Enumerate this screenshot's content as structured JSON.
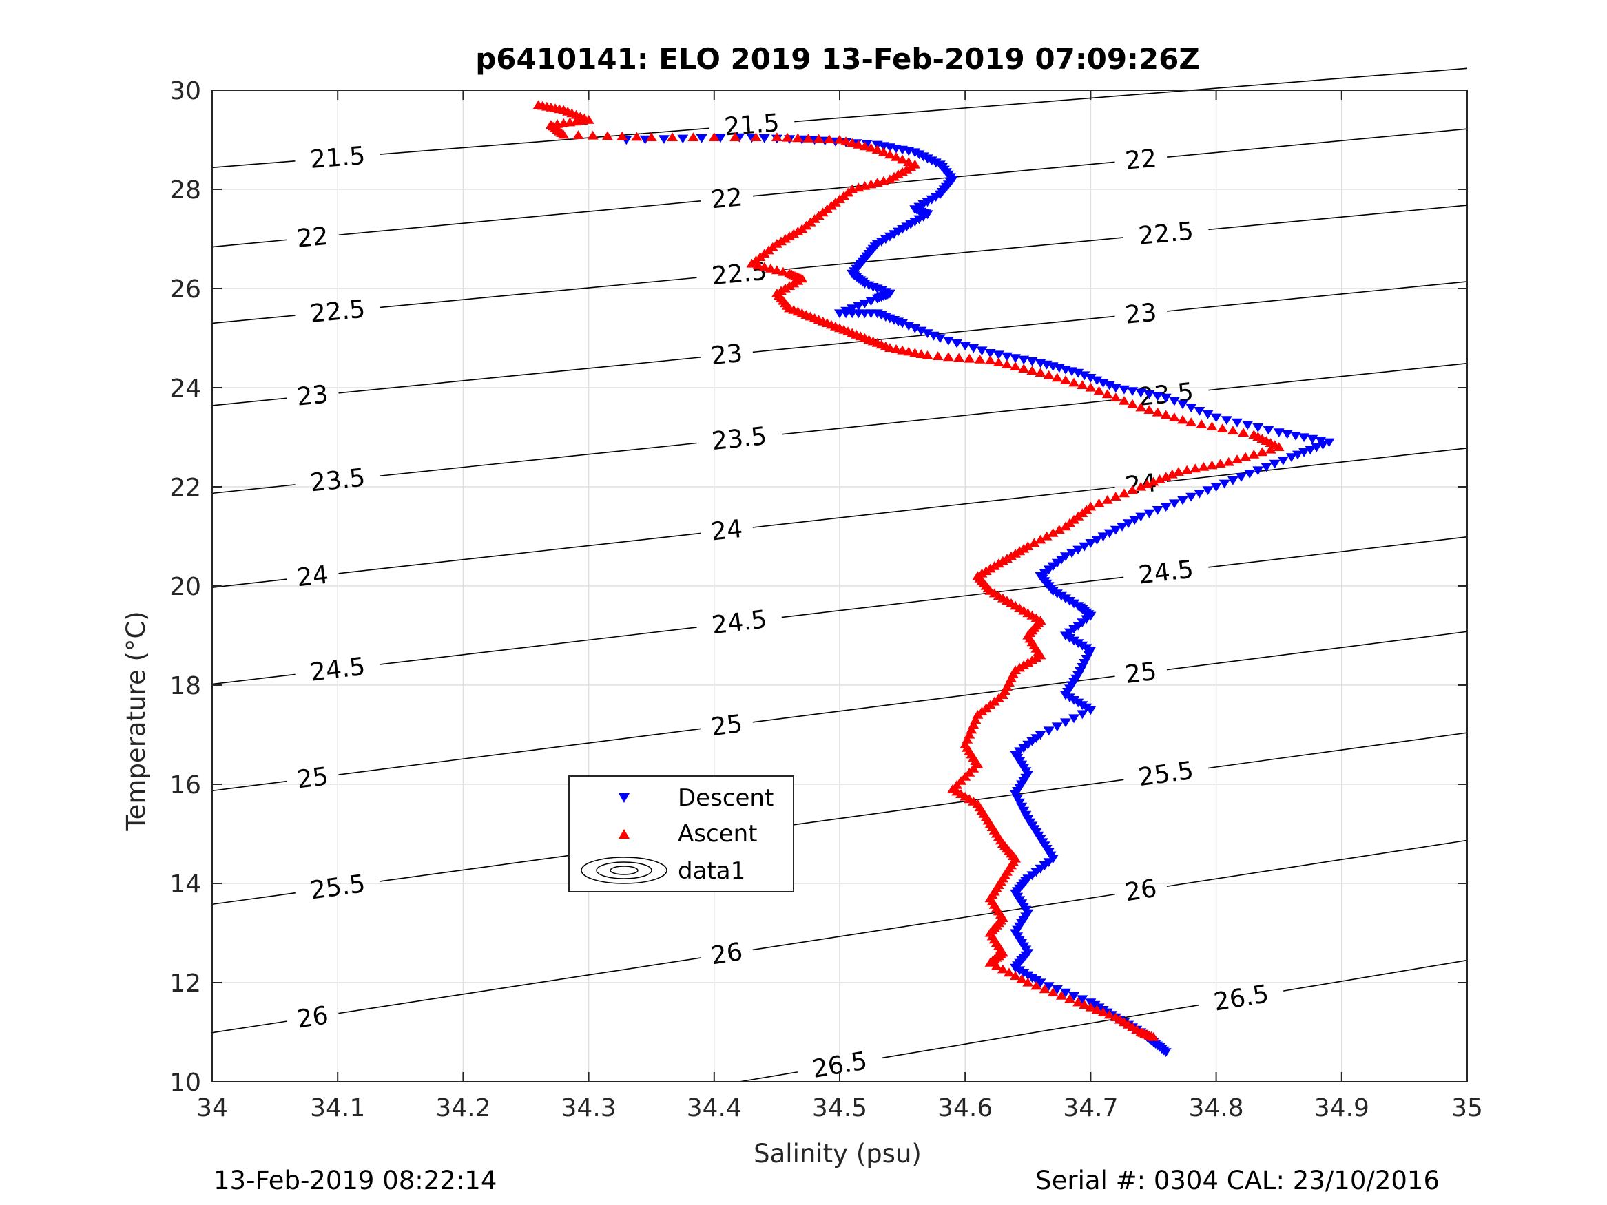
{
  "chart_data": {
    "type": "scatter",
    "title": "p6410141: ELO 2019 13-Feb-2019 07:09:26Z",
    "xlabel": "Salinity (psu)",
    "ylabel": "Temperature (°C)",
    "xlim": [
      34,
      35
    ],
    "ylim": [
      10,
      30
    ],
    "x_ticks": [
      "34",
      "34.1",
      "34.2",
      "34.3",
      "34.4",
      "34.5",
      "34.6",
      "34.7",
      "34.8",
      "34.9",
      "35"
    ],
    "y_ticks": [
      "10",
      "12",
      "14",
      "16",
      "18",
      "20",
      "22",
      "24",
      "26",
      "28",
      "30"
    ],
    "grid": true,
    "legend_placement": "center-left",
    "legend": [
      "Descent",
      "Ascent",
      "data1"
    ],
    "series": [
      {
        "name": "Descent",
        "marker": "triangle-down",
        "color": "#0000ff",
        "points": [
          [
            34.33,
            29.0
          ],
          [
            34.42,
            29.05
          ],
          [
            34.48,
            29.0
          ],
          [
            34.53,
            28.9
          ],
          [
            34.56,
            28.75
          ],
          [
            34.58,
            28.5
          ],
          [
            34.59,
            28.2
          ],
          [
            34.58,
            27.9
          ],
          [
            34.56,
            27.6
          ],
          [
            34.57,
            27.5
          ],
          [
            34.55,
            27.2
          ],
          [
            34.53,
            26.9
          ],
          [
            34.52,
            26.6
          ],
          [
            34.51,
            26.3
          ],
          [
            34.52,
            26.1
          ],
          [
            34.54,
            25.9
          ],
          [
            34.53,
            25.8
          ],
          [
            34.5,
            25.5
          ],
          [
            34.53,
            25.5
          ],
          [
            34.55,
            25.3
          ],
          [
            34.58,
            25.0
          ],
          [
            34.62,
            24.7
          ],
          [
            34.66,
            24.5
          ],
          [
            34.69,
            24.3
          ],
          [
            34.72,
            24.0
          ],
          [
            34.76,
            23.8
          ],
          [
            34.8,
            23.4
          ],
          [
            34.85,
            23.1
          ],
          [
            34.89,
            22.9
          ],
          [
            34.86,
            22.6
          ],
          [
            34.82,
            22.2
          ],
          [
            34.78,
            21.8
          ],
          [
            34.74,
            21.4
          ],
          [
            34.71,
            21.0
          ],
          [
            34.68,
            20.6
          ],
          [
            34.66,
            20.2
          ],
          [
            34.67,
            19.9
          ],
          [
            34.69,
            19.6
          ],
          [
            34.7,
            19.4
          ],
          [
            34.68,
            19.0
          ],
          [
            34.7,
            18.7
          ],
          [
            34.69,
            18.2
          ],
          [
            34.68,
            17.8
          ],
          [
            34.7,
            17.5
          ],
          [
            34.66,
            17.0
          ],
          [
            34.64,
            16.6
          ],
          [
            34.65,
            16.2
          ],
          [
            34.64,
            15.8
          ],
          [
            34.65,
            15.3
          ],
          [
            34.66,
            14.9
          ],
          [
            34.67,
            14.5
          ],
          [
            34.65,
            14.1
          ],
          [
            34.64,
            13.8
          ],
          [
            34.65,
            13.4
          ],
          [
            34.64,
            13.0
          ],
          [
            34.65,
            12.6
          ],
          [
            34.64,
            12.3
          ],
          [
            34.66,
            12.0
          ],
          [
            34.7,
            11.6
          ],
          [
            34.72,
            11.3
          ],
          [
            34.74,
            11.0
          ],
          [
            34.75,
            10.8
          ],
          [
            34.76,
            10.6
          ]
        ]
      },
      {
        "name": "Ascent",
        "marker": "triangle-up",
        "color": "#ff0000",
        "points": [
          [
            34.26,
            29.7
          ],
          [
            34.28,
            29.6
          ],
          [
            34.3,
            29.4
          ],
          [
            34.27,
            29.3
          ],
          [
            34.28,
            29.1
          ],
          [
            34.35,
            29.05
          ],
          [
            34.45,
            29.05
          ],
          [
            34.5,
            29.0
          ],
          [
            34.53,
            28.8
          ],
          [
            34.56,
            28.5
          ],
          [
            34.54,
            28.2
          ],
          [
            34.51,
            28.0
          ],
          [
            34.49,
            27.6
          ],
          [
            34.47,
            27.2
          ],
          [
            34.45,
            26.9
          ],
          [
            34.43,
            26.5
          ],
          [
            34.46,
            26.3
          ],
          [
            34.47,
            26.2
          ],
          [
            34.45,
            25.9
          ],
          [
            34.46,
            25.6
          ],
          [
            34.48,
            25.4
          ],
          [
            34.5,
            25.2
          ],
          [
            34.52,
            25.0
          ],
          [
            34.54,
            24.8
          ],
          [
            34.57,
            24.65
          ],
          [
            34.62,
            24.55
          ],
          [
            34.66,
            24.3
          ],
          [
            34.7,
            24.0
          ],
          [
            34.74,
            23.6
          ],
          [
            34.78,
            23.3
          ],
          [
            34.83,
            23.05
          ],
          [
            34.85,
            22.8
          ],
          [
            34.81,
            22.5
          ],
          [
            34.77,
            22.3
          ],
          [
            34.74,
            22.0
          ],
          [
            34.7,
            21.6
          ],
          [
            34.68,
            21.2
          ],
          [
            34.65,
            20.8
          ],
          [
            34.63,
            20.5
          ],
          [
            34.61,
            20.2
          ],
          [
            34.62,
            19.9
          ],
          [
            34.64,
            19.6
          ],
          [
            34.66,
            19.3
          ],
          [
            34.65,
            19.0
          ],
          [
            34.66,
            18.6
          ],
          [
            34.64,
            18.3
          ],
          [
            34.63,
            17.8
          ],
          [
            34.61,
            17.4
          ],
          [
            34.6,
            16.8
          ],
          [
            34.61,
            16.4
          ],
          [
            34.59,
            15.9
          ],
          [
            34.61,
            15.6
          ],
          [
            34.62,
            15.2
          ],
          [
            34.63,
            14.8
          ],
          [
            34.64,
            14.5
          ],
          [
            34.63,
            14.1
          ],
          [
            34.62,
            13.7
          ],
          [
            34.63,
            13.3
          ],
          [
            34.62,
            13.0
          ],
          [
            34.63,
            12.6
          ],
          [
            34.62,
            12.4
          ],
          [
            34.65,
            12.0
          ],
          [
            34.69,
            11.6
          ],
          [
            34.72,
            11.3
          ],
          [
            34.74,
            11.0
          ],
          [
            34.75,
            10.9
          ]
        ]
      }
    ],
    "contours": [
      {
        "label": "21.5",
        "x1": 34,
        "y1": 28.44,
        "x2": 35,
        "y2": 30.44,
        "label_positions": [
          34.1,
          34.43
        ]
      },
      {
        "label": "22",
        "x1": 34,
        "y1": 26.84,
        "x2": 35,
        "y2": 29.22,
        "label_positions": [
          34.08,
          34.41,
          34.74
        ]
      },
      {
        "label": "22.5",
        "x1": 34,
        "y1": 25.3,
        "x2": 35,
        "y2": 27.68,
        "label_positions": [
          34.1,
          34.42,
          34.76
        ]
      },
      {
        "label": "23",
        "x1": 34,
        "y1": 23.64,
        "x2": 35,
        "y2": 26.14,
        "label_positions": [
          34.08,
          34.41,
          34.74
        ]
      },
      {
        "label": "23.5",
        "x1": 34,
        "y1": 21.87,
        "x2": 35,
        "y2": 24.49,
        "label_positions": [
          34.1,
          34.42,
          34.76
        ]
      },
      {
        "label": "24",
        "x1": 34,
        "y1": 19.97,
        "x2": 35,
        "y2": 22.78,
        "label_positions": [
          34.08,
          34.41,
          34.74
        ]
      },
      {
        "label": "24.5",
        "x1": 34,
        "y1": 18.02,
        "x2": 35,
        "y2": 20.99,
        "label_positions": [
          34.1,
          34.42,
          34.76
        ]
      },
      {
        "label": "25",
        "x1": 34,
        "y1": 15.87,
        "x2": 35,
        "y2": 19.08,
        "label_positions": [
          34.08,
          34.41,
          34.74
        ]
      },
      {
        "label": "25.5",
        "x1": 34,
        "y1": 13.58,
        "x2": 35,
        "y2": 17.04,
        "label_positions": [
          34.1,
          34.43,
          34.76
        ]
      },
      {
        "label": "26",
        "x1": 34,
        "y1": 10.99,
        "x2": 35,
        "y2": 14.87,
        "label_positions": [
          34.08,
          34.41,
          34.74
        ]
      },
      {
        "label": "26.5",
        "x1": 34.42,
        "y1": 10.0,
        "x2": 35,
        "y2": 12.45,
        "label_positions": [
          34.5,
          34.82
        ]
      }
    ]
  },
  "footer": {
    "timestamp": "13-Feb-2019 08:22:14",
    "serial": "Serial #: 0304  CAL: 23/10/2016"
  }
}
